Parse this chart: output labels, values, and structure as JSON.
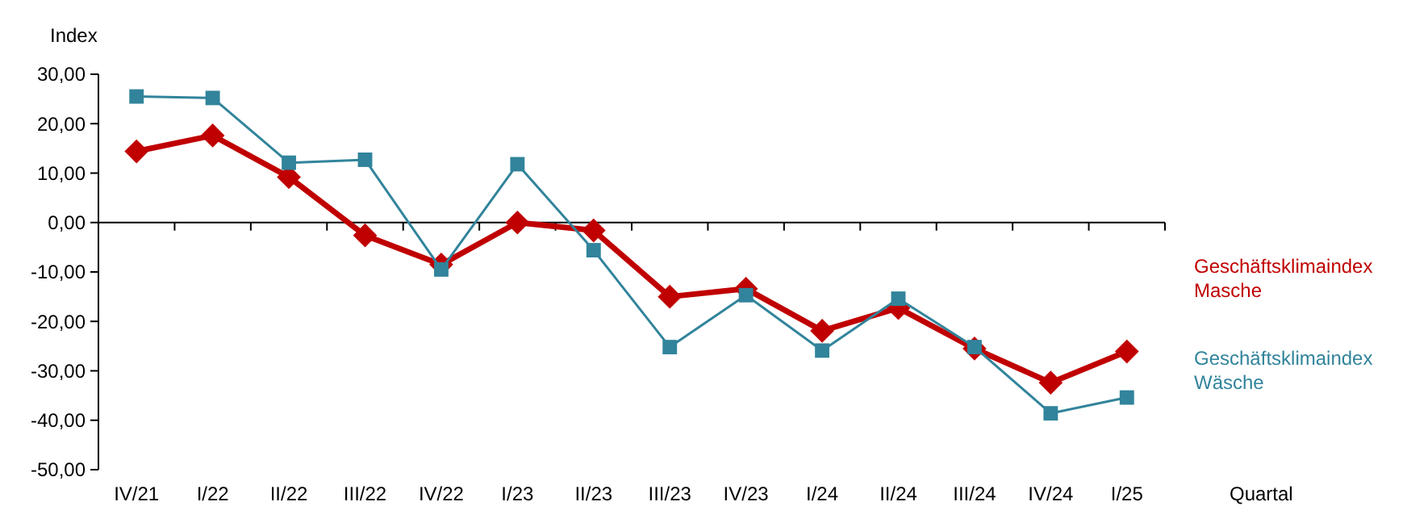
{
  "chart_data": {
    "type": "line",
    "ylabel": "Index",
    "xlabel": "Quartal",
    "categories": [
      "IV/21",
      "I/22",
      "II/22",
      "III/22",
      "IV/22",
      "I/23",
      "II/23",
      "III/23",
      "IV/23",
      "I/24",
      "II/24",
      "III/24",
      "IV/24",
      "I/25"
    ],
    "ylim": [
      -50,
      30
    ],
    "yticks": [
      {
        "value": 30,
        "label": "30,00"
      },
      {
        "value": 20,
        "label": "20,00"
      },
      {
        "value": 10,
        "label": "10,00"
      },
      {
        "value": 0,
        "label": "0,00"
      },
      {
        "value": -10,
        "label": "-10,00"
      },
      {
        "value": -20,
        "label": "-20,00"
      },
      {
        "value": -30,
        "label": "-30,00"
      },
      {
        "value": -40,
        "label": "-40,00"
      },
      {
        "value": -50,
        "label": "-50,00"
      }
    ],
    "legend": "right",
    "series": [
      {
        "name": "Geschäftsklimaindex Wäsche",
        "color": "#31849b",
        "marker": "square",
        "values": [
          25.5,
          25.2,
          12.1,
          12.7,
          -9.5,
          11.8,
          -5.6,
          -25.2,
          -14.7,
          -25.9,
          -15.4,
          -25.2,
          -38.6,
          -35.4
        ]
      },
      {
        "name": "Geschäftsklimaindex Masche",
        "color": "#c00000",
        "marker": "diamond",
        "values": [
          14.4,
          17.6,
          9.2,
          -2.6,
          -8.5,
          0,
          -1.6,
          -15,
          -13.4,
          -21.9,
          -17.3,
          -25.5,
          -32.4,
          -26.1
        ]
      }
    ]
  }
}
